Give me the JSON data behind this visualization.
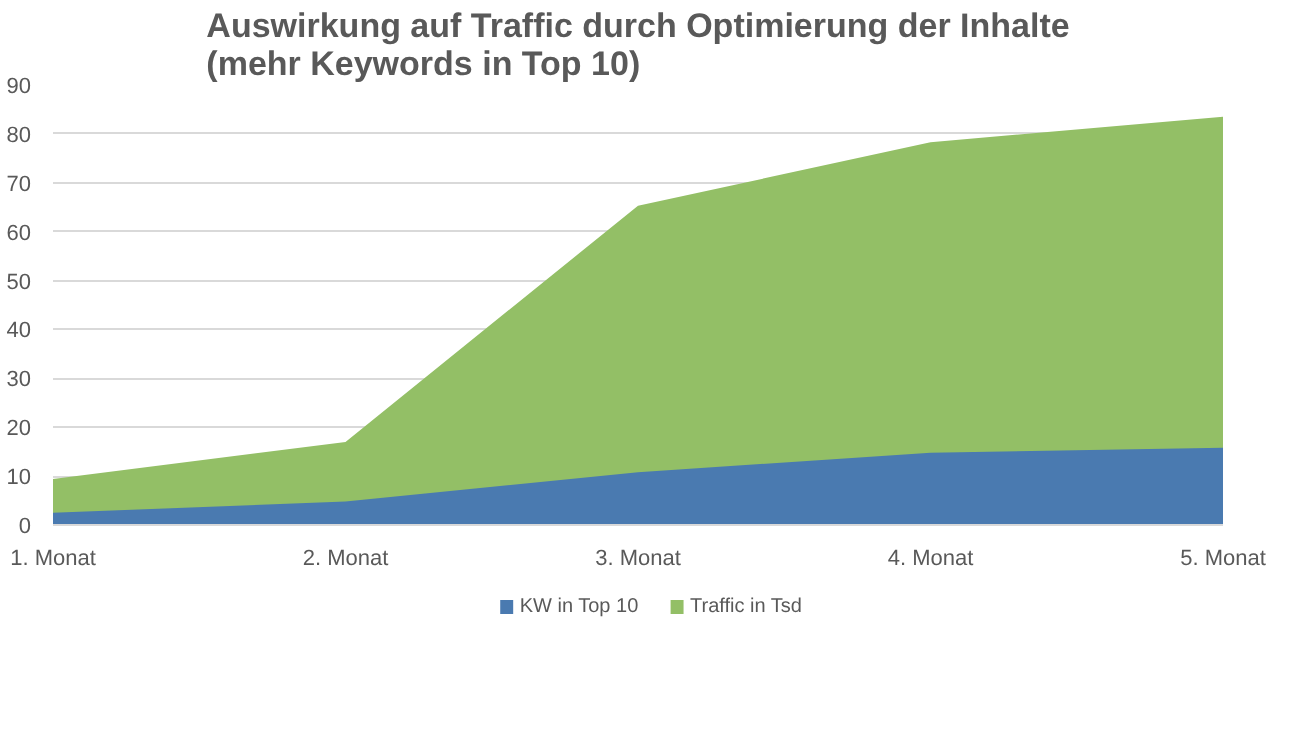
{
  "chart_data": {
    "type": "area",
    "title": "Auswirkung auf Traffic durch Optimierung der Inhalte\n(mehr Keywords in Top 10)",
    "categories": [
      "1. Monat",
      "2. Monat",
      "3. Monat",
      "4. Monat",
      "5. Monat"
    ],
    "series": [
      {
        "name": "KW in Top 10",
        "color": "#4a7ab0",
        "values": [
          2.5,
          4.8,
          10.8,
          14.8,
          15.8
        ]
      },
      {
        "name": "Traffic in Tsd",
        "color": "#93bf66",
        "values": [
          9.4,
          17,
          65.3,
          78.3,
          83.5
        ]
      }
    ],
    "ylim": [
      0,
      90
    ],
    "yticks": [
      0,
      10,
      20,
      30,
      40,
      50,
      60,
      70,
      80,
      90
    ],
    "grid": "y",
    "legend": "bottom"
  }
}
